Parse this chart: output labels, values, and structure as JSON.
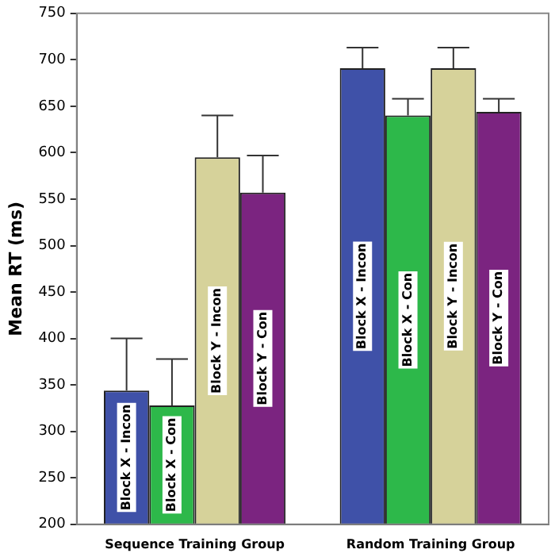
{
  "chart_data": {
    "type": "bar",
    "ylabel": "Mean RT (ms)",
    "categories": [
      "Sequence Training Group",
      "Random Training Group"
    ],
    "series": [
      {
        "name": "Block X - Incon",
        "color": "#3f51a8",
        "values": [
          344,
          691
        ],
        "errors": [
          [
            344,
            400
          ],
          [
            691,
            713
          ]
        ]
      },
      {
        "name": "Block X - Con",
        "color": "#2db84a",
        "values": [
          328,
          640
        ],
        "errors": [
          [
            328,
            378
          ],
          [
            640,
            658
          ]
        ]
      },
      {
        "name": "Block Y - Incon",
        "color": "#d6d29a",
        "values": [
          595,
          691
        ],
        "errors": [
          [
            595,
            640
          ],
          [
            691,
            713
          ]
        ]
      },
      {
        "name": "Block Y - Con",
        "color": "#7b2480",
        "values": [
          557,
          644
        ],
        "errors": [
          [
            557,
            597
          ],
          [
            644,
            658
          ]
        ]
      }
    ],
    "ylim": [
      200,
      750
    ],
    "yticks": [
      200,
      250,
      300,
      350,
      400,
      450,
      500,
      550,
      600,
      650,
      700,
      750
    ],
    "grid": false,
    "legend": false
  }
}
